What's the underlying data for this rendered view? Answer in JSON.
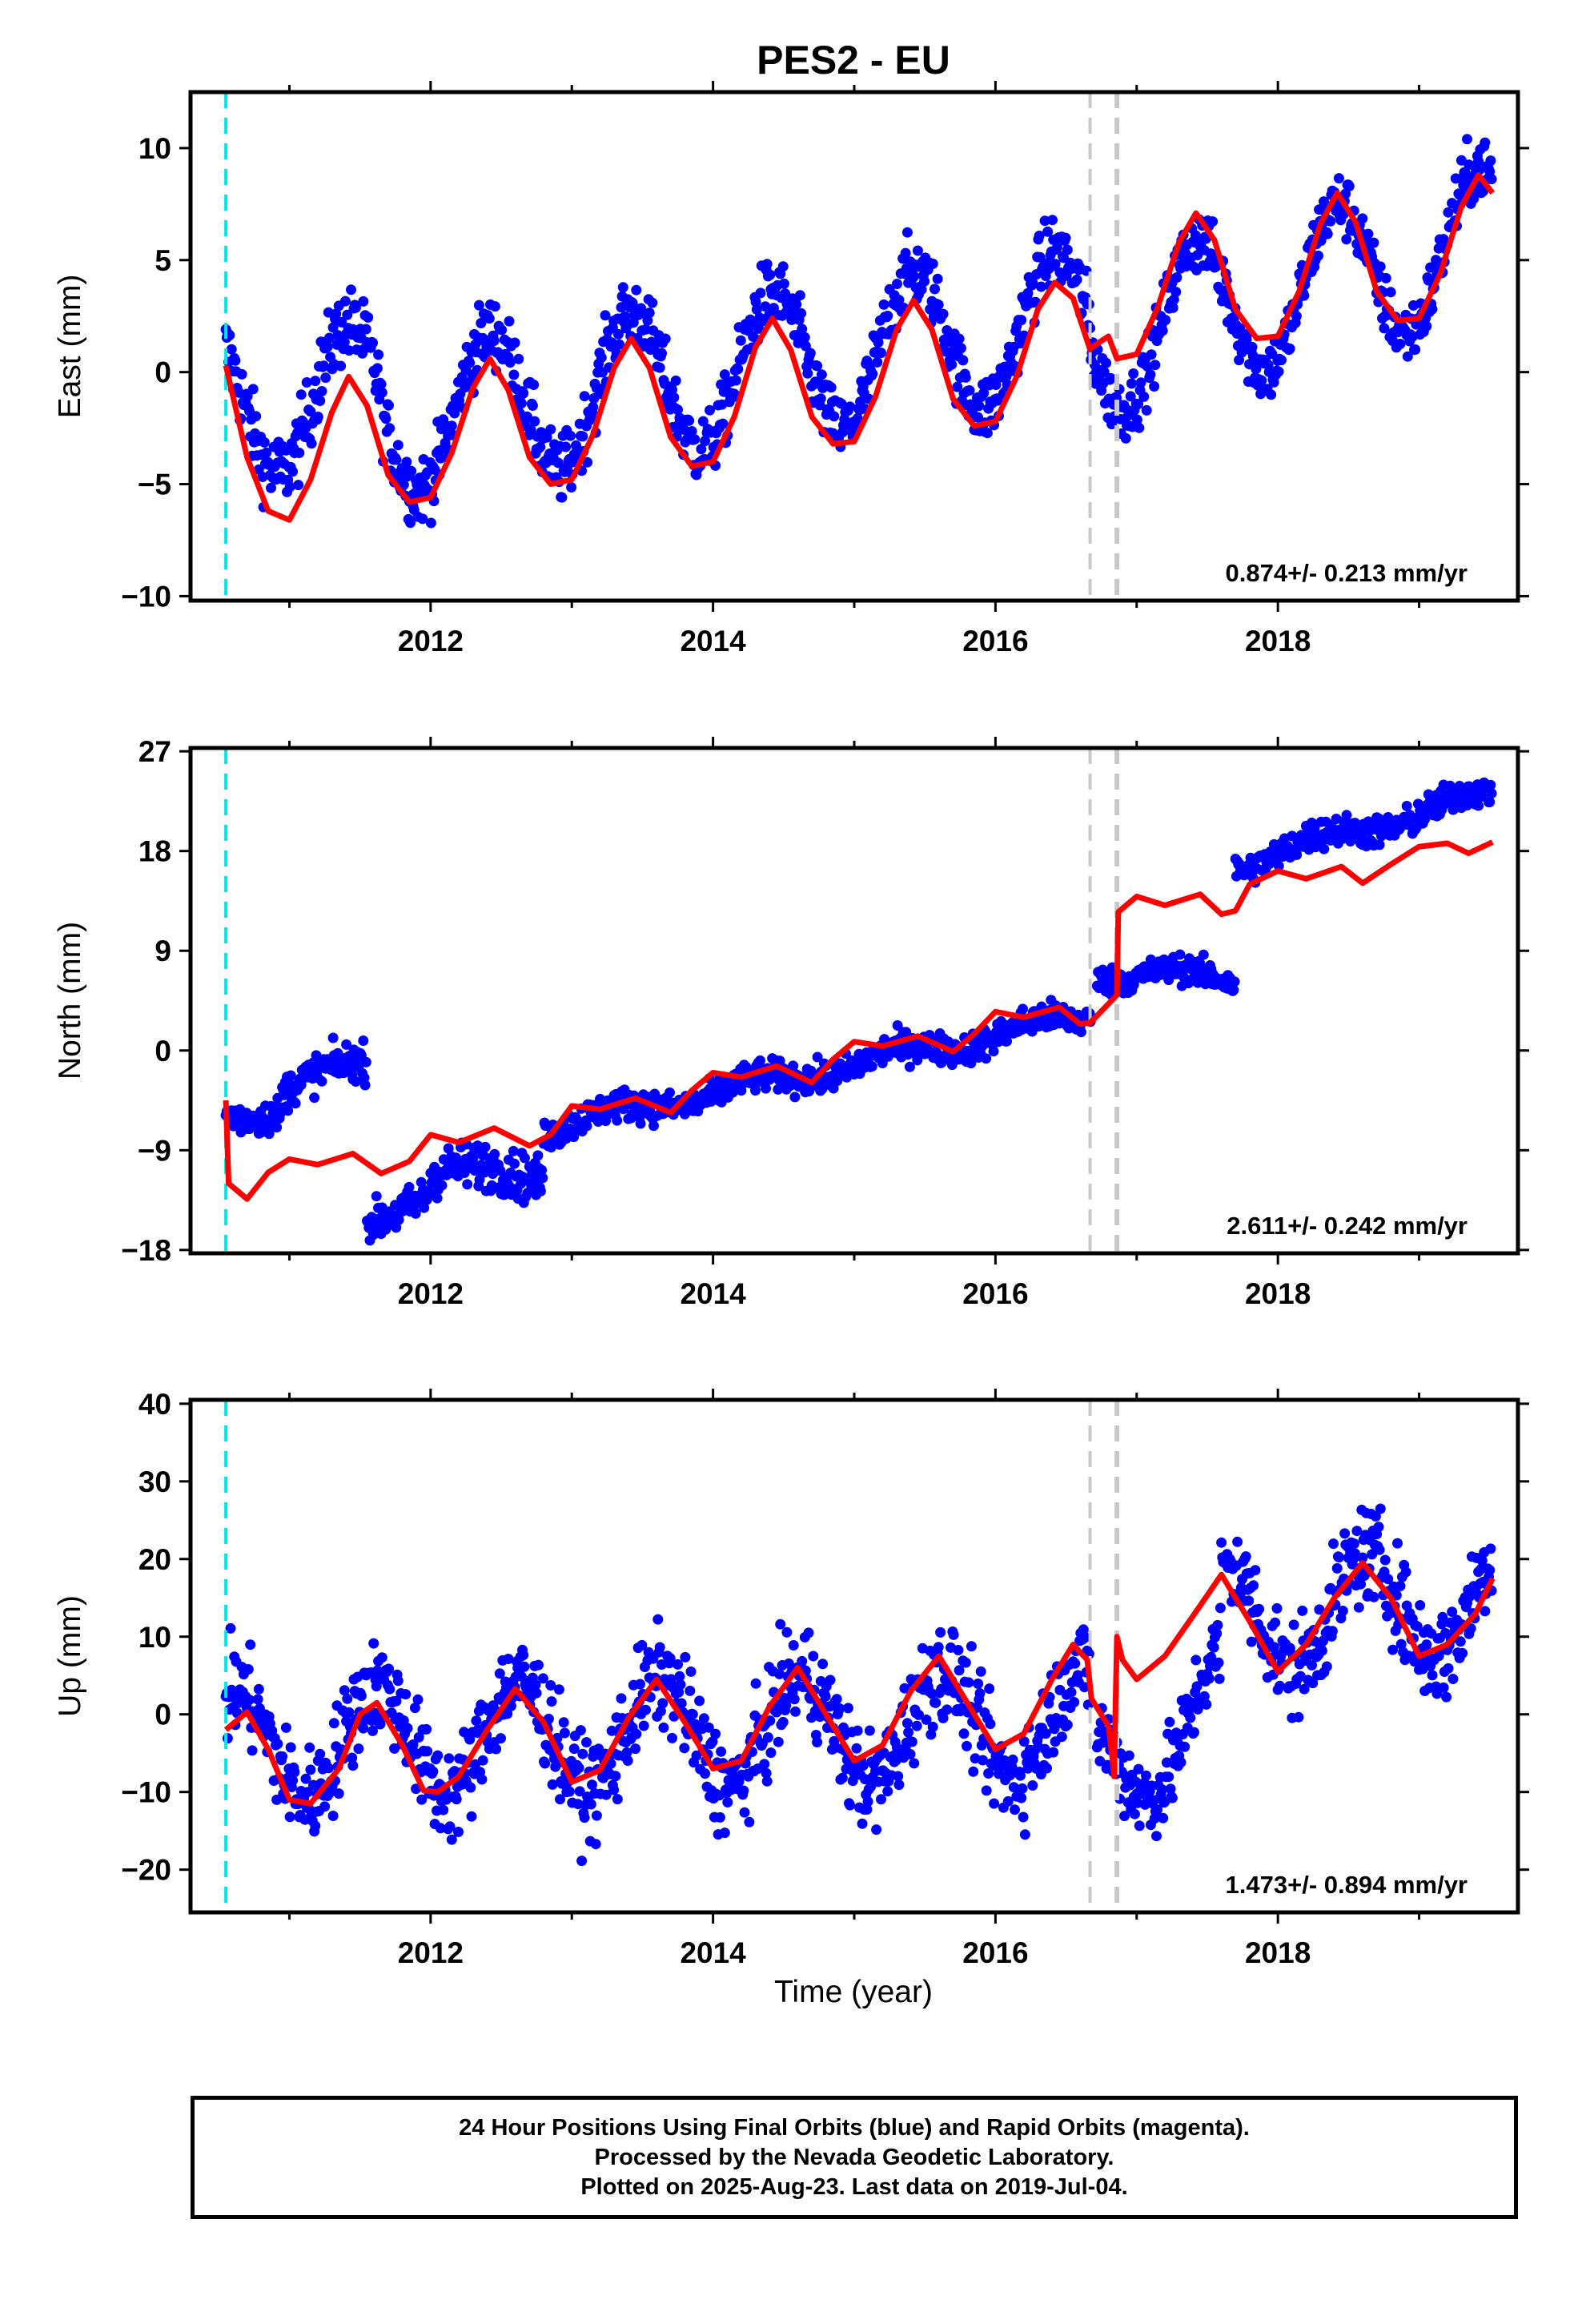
{
  "title": "PES2 - EU",
  "xlabel": "Time (year)",
  "footer": {
    "line1": "24 Hour Positions Using Final Orbits (blue) and Rapid Orbits (magenta).",
    "line2": "Processed by the Nevada Geodetic Laboratory.",
    "line3": "Plotted on 2025-Aug-23. Last data on 2019-Jul-04."
  },
  "colors": {
    "data": "#0000ff",
    "model": "#ff0000",
    "start_line": "#00e5ee",
    "event_line": "#c8c8c8",
    "frame": "#000000"
  },
  "chart_data": [
    {
      "type": "scatter",
      "component": "east",
      "ylabel": "East (mm)",
      "ylim": [
        -10.2,
        12.5
      ],
      "yticks": [
        -10,
        -5,
        0,
        5,
        10
      ],
      "xlim": [
        2010.3,
        2019.7
      ],
      "xticks": [
        2012,
        2014,
        2016,
        2018
      ],
      "rate_label": "0.874+/- 0.213 mm/yr",
      "start": 2010.55,
      "events": [
        2016.67,
        2016.86
      ],
      "steps": [
        {
          "x": 2016.67,
          "dy": -3.0
        },
        {
          "x": 2016.86,
          "dy": 0.3
        }
      ],
      "trend_series": {
        "name": "",
        "t0": 2010.55,
        "y0": -1.2,
        "rate": 0.874,
        "step_x": 2016.67,
        "step_dy": 0
      },
      "segments": [
        {
          "x": [
            2010.55,
            2011.65
          ],
          "trend": [
            -1.2,
            -1.2
          ],
          "noise": 1.2
        },
        {
          "x": [
            2011.65,
            2016.67
          ],
          "trend": [
            -2.2,
            2.3
          ],
          "noise": 1.1
        },
        {
          "x": [
            2016.67,
            2019.52
          ],
          "trend": [
            1.3,
            6.0
          ],
          "noise": 1.0
        }
      ],
      "seasonal_amp": 3.3,
      "seasonal_peak": 0.42,
      "model": {
        "x": [
          2010.55,
          2010.7,
          2010.85,
          2011.0,
          2011.15,
          2011.3,
          2011.42,
          2011.55,
          2011.7,
          2011.85,
          2012.0,
          2012.15,
          2012.3,
          2012.42,
          2012.55,
          2012.7,
          2012.85,
          2013.0,
          2013.15,
          2013.3,
          2013.42,
          2013.55,
          2013.7,
          2013.85,
          2014.0,
          2014.15,
          2014.3,
          2014.42,
          2014.55,
          2014.7,
          2014.85,
          2015.0,
          2015.15,
          2015.3,
          2015.42,
          2015.55,
          2015.7,
          2015.85,
          2016.0,
          2016.15,
          2016.3,
          2016.42,
          2016.55,
          2016.67,
          2016.68,
          2016.8,
          2016.86,
          2017.0,
          2017.15,
          2017.3,
          2017.42,
          2017.55,
          2017.7,
          2017.85,
          2018.0,
          2018.15,
          2018.3,
          2018.42,
          2018.55,
          2018.7,
          2018.85,
          2019.0,
          2019.15,
          2019.3,
          2019.42,
          2019.52
        ],
        "y": [
          0.3,
          -3.8,
          -6.2,
          -6.6,
          -4.8,
          -1.8,
          -0.2,
          -1.5,
          -4.6,
          -5.8,
          -5.6,
          -3.6,
          -0.7,
          0.6,
          -0.8,
          -3.8,
          -5.0,
          -4.8,
          -2.8,
          0.2,
          1.5,
          0.2,
          -2.9,
          -4.2,
          -4.0,
          -2.0,
          1.1,
          2.4,
          1.0,
          -2.0,
          -3.2,
          -3.1,
          -1.1,
          1.9,
          3.2,
          1.9,
          -1.2,
          -2.4,
          -2.2,
          -0.2,
          2.8,
          4.0,
          3.3,
          1.0,
          1.1,
          1.6,
          0.6,
          0.8,
          2.9,
          5.8,
          7.1,
          5.9,
          2.8,
          1.5,
          1.6,
          3.6,
          6.6,
          8.0,
          6.7,
          3.6,
          2.3,
          2.4,
          4.4,
          7.4,
          8.8,
          8.0
        ]
      }
    },
    {
      "type": "scatter",
      "component": "north",
      "ylabel": "North (mm)",
      "ylim": [
        -18.3,
        27.3
      ],
      "yticks": [
        -18,
        -9,
        0,
        9,
        18,
        27
      ],
      "xlim": [
        2010.3,
        2019.7
      ],
      "xticks": [
        2012,
        2014,
        2016,
        2018
      ],
      "rate_label": "2.611+/- 0.242 mm/yr",
      "start": 2010.55,
      "events": [
        2016.67,
        2016.86
      ],
      "segments": [
        {
          "x": [
            2010.55,
            2010.95
          ],
          "trend": [
            -5.8,
            -5.2
          ],
          "noise": 1.1
        },
        {
          "x": [
            2010.95,
            2011.55
          ],
          "trend": [
            -3.5,
            -1.0
          ],
          "noise": 1.2
        },
        {
          "x": [
            2011.55,
            2012.0
          ],
          "trend": [
            -15.5,
            -12.5
          ],
          "noise": 1.3
        },
        {
          "x": [
            2012.0,
            2012.8
          ],
          "trend": [
            -11.0,
            -11.0
          ],
          "noise": 1.5
        },
        {
          "x": [
            2012.8,
            2016.68
          ],
          "trend": [
            -7.0,
            3.2
          ],
          "noise": 1.0
        },
        {
          "x": [
            2016.72,
            2017.7
          ],
          "trend": [
            7.0,
            6.5
          ],
          "noise": 0.9
        },
        {
          "x": [
            2017.7,
            2019.52
          ],
          "trend": [
            16.8,
            23.2
          ],
          "noise": 1.0
        }
      ],
      "seasonal_amp": 0.7,
      "seasonal_peak": 0.3,
      "model": {
        "x": [
          2010.55,
          2010.57,
          2010.7,
          2010.85,
          2011.0,
          2011.2,
          2011.45,
          2011.65,
          2011.85,
          2012.0,
          2012.2,
          2012.45,
          2012.7,
          2012.85,
          2013.0,
          2013.2,
          2013.45,
          2013.7,
          2013.85,
          2014.0,
          2014.2,
          2014.45,
          2014.7,
          2014.85,
          2015.0,
          2015.2,
          2015.45,
          2015.7,
          2015.85,
          2016.0,
          2016.2,
          2016.45,
          2016.6,
          2016.67,
          2016.86,
          2016.87,
          2017.0,
          2017.2,
          2017.45,
          2017.6,
          2017.7,
          2017.8,
          2018.0,
          2018.2,
          2018.45,
          2018.6,
          2018.8,
          2019.0,
          2019.2,
          2019.35,
          2019.52
        ],
        "y": [
          -4.5,
          -12.0,
          -13.4,
          -11.0,
          -9.8,
          -10.3,
          -9.3,
          -11.1,
          -10.0,
          -7.6,
          -8.3,
          -7.0,
          -8.6,
          -7.6,
          -5.0,
          -5.3,
          -4.3,
          -5.6,
          -3.6,
          -2.0,
          -2.4,
          -1.4,
          -2.9,
          -0.8,
          0.8,
          0.4,
          1.3,
          -0.1,
          1.5,
          3.5,
          3.0,
          3.9,
          2.4,
          2.5,
          5.0,
          12.5,
          13.9,
          13.1,
          14.1,
          12.3,
          12.6,
          15.0,
          16.2,
          15.5,
          16.6,
          15.1,
          16.8,
          18.4,
          18.7,
          17.8,
          18.8
        ]
      }
    },
    {
      "type": "scatter",
      "component": "up",
      "ylabel": "Up (mm)",
      "ylim": [
        -25.5,
        40.5
      ],
      "yticks": [
        -20,
        -10,
        0,
        10,
        20,
        30,
        40
      ],
      "xlim": [
        2010.3,
        2019.7
      ],
      "xticks": [
        2012,
        2014,
        2016,
        2018
      ],
      "rate_label": "1.473+/- 0.894 mm/yr",
      "start": 2010.55,
      "events": [
        2016.67,
        2016.86
      ],
      "segments": [
        {
          "x": [
            2010.55,
            2016.67
          ],
          "trend": [
            -4.0,
            -1.0
          ],
          "noise": 4.5
        },
        {
          "x": [
            2016.72,
            2017.6
          ],
          "trend": [
            -8.0,
            2.0
          ],
          "noise": 4.0
        },
        {
          "x": [
            2017.6,
            2019.52
          ],
          "trend": [
            12.0,
            15.0
          ],
          "noise": 4.5
        }
      ],
      "seasonal_amp": 7.0,
      "seasonal_peak": 0.62,
      "model": {
        "x": [
          2010.55,
          2010.7,
          2010.85,
          2011.0,
          2011.15,
          2011.35,
          2011.5,
          2011.62,
          2011.8,
          2011.95,
          2012.05,
          2012.2,
          2012.4,
          2012.6,
          2012.8,
          2013.0,
          2013.2,
          2013.4,
          2013.6,
          2013.8,
          2014.0,
          2014.2,
          2014.4,
          2014.6,
          2014.8,
          2015.0,
          2015.2,
          2015.4,
          2015.6,
          2015.8,
          2016.0,
          2016.2,
          2016.4,
          2016.55,
          2016.65,
          2016.68,
          2016.8,
          2016.83,
          2016.84,
          2016.86,
          2016.9,
          2017.0,
          2017.2,
          2017.45,
          2017.6,
          2017.8,
          2018.0,
          2018.2,
          2018.4,
          2018.6,
          2018.8,
          2019.0,
          2019.2,
          2019.4,
          2019.52
        ],
        "y": [
          -2.0,
          0.3,
          -4.5,
          -11.0,
          -11.5,
          -7.0,
          0.0,
          1.5,
          -4.0,
          -9.8,
          -10.0,
          -8.0,
          -2.0,
          3.3,
          -1.0,
          -8.7,
          -7.2,
          -0.5,
          4.5,
          -1.0,
          -7.0,
          -6.0,
          1.0,
          6.0,
          0.0,
          -6.0,
          -4.0,
          3.0,
          7.5,
          1.5,
          -4.5,
          -2.5,
          4.5,
          9.0,
          7.0,
          2.0,
          -1.5,
          -6.0,
          -8.0,
          10.0,
          7.0,
          4.5,
          7.5,
          14.0,
          18.0,
          12.0,
          5.5,
          9.0,
          15.0,
          19.5,
          15.0,
          7.5,
          9.0,
          13.0,
          17.5
        ]
      }
    }
  ]
}
